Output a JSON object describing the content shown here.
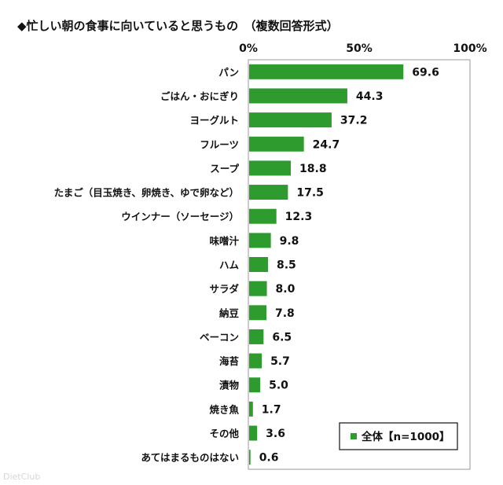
{
  "chart_data": {
    "type": "bar",
    "orientation": "horizontal",
    "title": "◆忙しい朝の食事に向いていると思うもの　（複数回答形式）",
    "categories": [
      "パン",
      "ごはん・おにぎり",
      "ヨーグルト",
      "フルーツ",
      "スープ",
      "たまご（目玉焼き、卵焼き、ゆで卵など）",
      "ウインナー（ソーセージ）",
      "味噌汁",
      "ハム",
      "サラダ",
      "納豆",
      "ベーコン",
      "海苔",
      "漬物",
      "焼き魚",
      "その他",
      "あてはまるものはない"
    ],
    "series": [
      {
        "name": "全体【n=1000】",
        "values": [
          69.6,
          44.3,
          37.2,
          24.7,
          18.8,
          17.5,
          12.3,
          9.8,
          8.5,
          8.0,
          7.8,
          6.5,
          5.7,
          5.0,
          1.7,
          3.6,
          0.6
        ],
        "color": "#2e9b2e"
      }
    ],
    "value_labels": [
      "69.6",
      "44.3",
      "37.2",
      "24.7",
      "18.8",
      "17.5",
      "12.3",
      "9.8",
      "8.5",
      "8.0",
      "7.8",
      "6.5",
      "5.7",
      "5.0",
      "1.7",
      "3.6",
      "0.6"
    ],
    "xlim": [
      0,
      100
    ],
    "ticks": [
      0,
      50,
      100
    ],
    "tick_labels": [
      "0%",
      "50%",
      "100%"
    ],
    "grid": false,
    "legend_position": "bottom-right",
    "watermark": "DietClub"
  }
}
